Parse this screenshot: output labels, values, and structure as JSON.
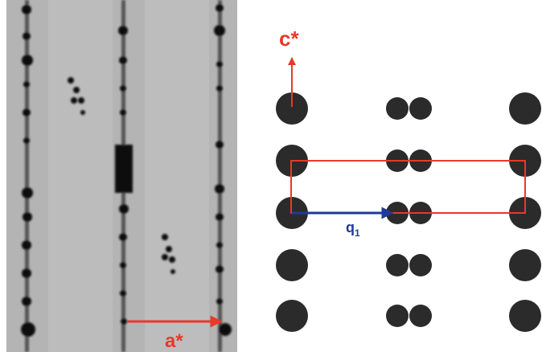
{
  "labels": {
    "a_star": "a*",
    "c_star": "c*",
    "q": "q",
    "q_sub": "1"
  }
}
